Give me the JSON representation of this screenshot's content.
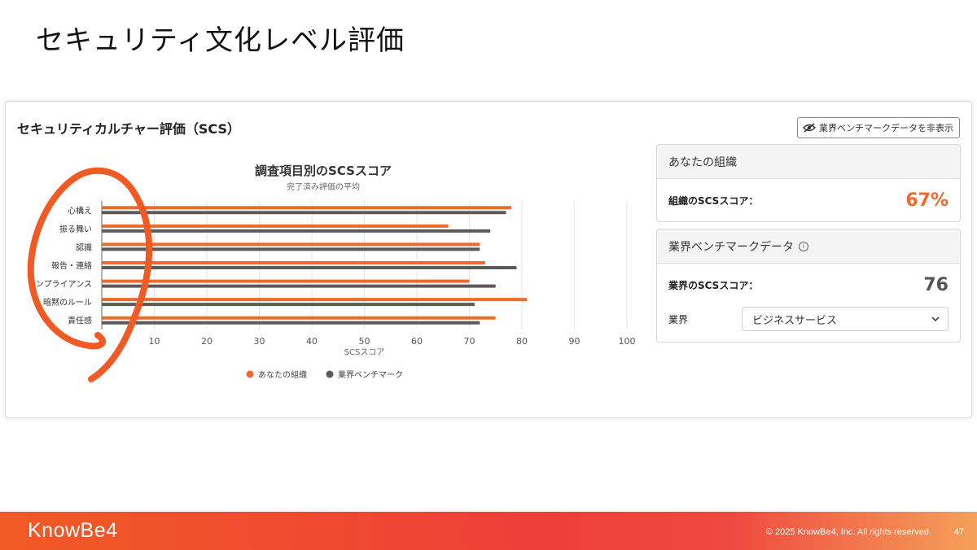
{
  "slide": {
    "title": "セキュリティ文化レベル評価",
    "page_number": "47",
    "copyright": "© 2025 KnowBe4, Inc. All rights reserved.",
    "logo_text": "KnowBe4"
  },
  "card": {
    "title": "セキュリティカルチャー評価（SCS）",
    "toggle_label": "業界ベンチマークデータを非表示"
  },
  "org_panel": {
    "header": "あなたの組織",
    "score_label": "組織のSCSスコア：",
    "score_value": "67%"
  },
  "bench_panel": {
    "header": "業界ベンチマークデータ",
    "score_label": "業界のSCSスコア：",
    "score_value": "76",
    "industry_label": "業界",
    "industry_selected": "ビジネスサービス"
  },
  "chart_data": {
    "type": "bar",
    "orientation": "horizontal",
    "title": "調査項目別のSCSスコア",
    "subtitle": "完了済み評価の平均",
    "xlabel": "SCSスコア",
    "categories": [
      "心構え",
      "振る舞い",
      "認識",
      "報告・連絡",
      "コンプライアンス",
      "暗黙のルール",
      "責任感"
    ],
    "series": [
      {
        "name": "あなたの組織",
        "color": "#ee6a2c",
        "values": [
          78,
          66,
          72,
          73,
          70,
          81,
          75
        ]
      },
      {
        "name": "業界ベンチマーク",
        "color": "#5a5a5a",
        "values": [
          77,
          74,
          72,
          79,
          75,
          71,
          72
        ]
      }
    ],
    "xlim": [
      0,
      100
    ],
    "xticks": [
      0,
      10,
      20,
      30,
      40,
      50,
      60,
      70,
      80,
      90,
      100
    ],
    "grid": true,
    "legend_position": "bottom"
  }
}
